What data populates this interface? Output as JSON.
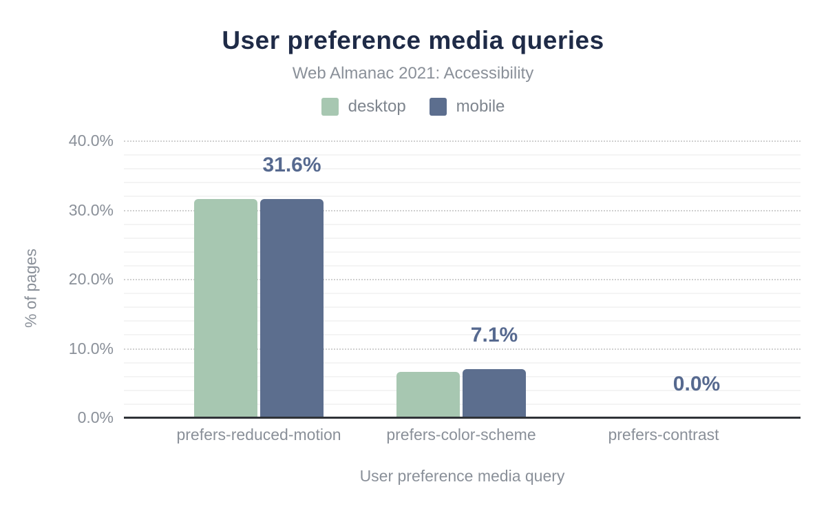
{
  "chart_data": {
    "type": "bar",
    "title": "User preference media queries",
    "subtitle": "Web Almanac 2021: Accessibility",
    "categories": [
      "prefers-reduced-motion",
      "prefers-color-scheme",
      "prefers-contrast"
    ],
    "series": [
      {
        "name": "desktop",
        "values": [
          31.6,
          6.7,
          0.0
        ]
      },
      {
        "name": "mobile",
        "values": [
          31.6,
          7.1,
          0.0
        ]
      }
    ],
    "value_labels": [
      "31.6%",
      "7.1%",
      "0.0%"
    ],
    "xlabel": "User preference media query",
    "ylabel": "% of pages",
    "ylim": [
      0,
      40
    ],
    "yticks": [
      {
        "value": 0,
        "label": "0.0%"
      },
      {
        "value": 10,
        "label": "10.0%"
      },
      {
        "value": 20,
        "label": "20.0%"
      },
      {
        "value": 30,
        "label": "30.0%"
      },
      {
        "value": 40,
        "label": "40.0%"
      }
    ],
    "grid": {
      "major_interval": 10,
      "minor_interval": 2,
      "major_style": "dotted",
      "minor_style": "solid"
    },
    "legend_position": "top",
    "colors": {
      "desktop": "#a7c7b1",
      "mobile": "#5c6e8e",
      "title": "#1f2b47",
      "subtitle": "#8a9099",
      "axis_text": "#8a9099",
      "value_label": "#56698f",
      "axis_line": "#2f3237",
      "grid_major": "#cfcfcf",
      "grid_minor": "#f4f4f4"
    }
  }
}
